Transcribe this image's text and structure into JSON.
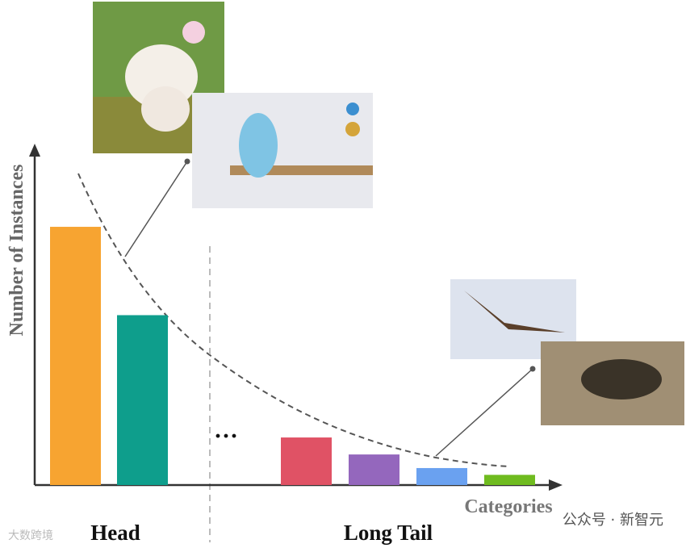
{
  "chart_data": {
    "type": "bar",
    "y_label": "Number of Instances",
    "x_label": "Categories",
    "categories": [
      null,
      null,
      null,
      null,
      null,
      null
    ],
    "values": [
      76,
      50,
      14,
      9,
      5,
      3
    ],
    "colors": [
      "#f7a431",
      "#0e9e8c",
      "#e05265",
      "#9467bd",
      "#6aa1f0",
      "#6fbb1f"
    ],
    "ylim": [
      0,
      100
    ],
    "annotations": {
      "head": "Head",
      "tail": "Long Tail",
      "ellipsis": "···"
    },
    "watermarks": [
      "大数跨境",
      "公众号 · 新智元"
    ]
  }
}
